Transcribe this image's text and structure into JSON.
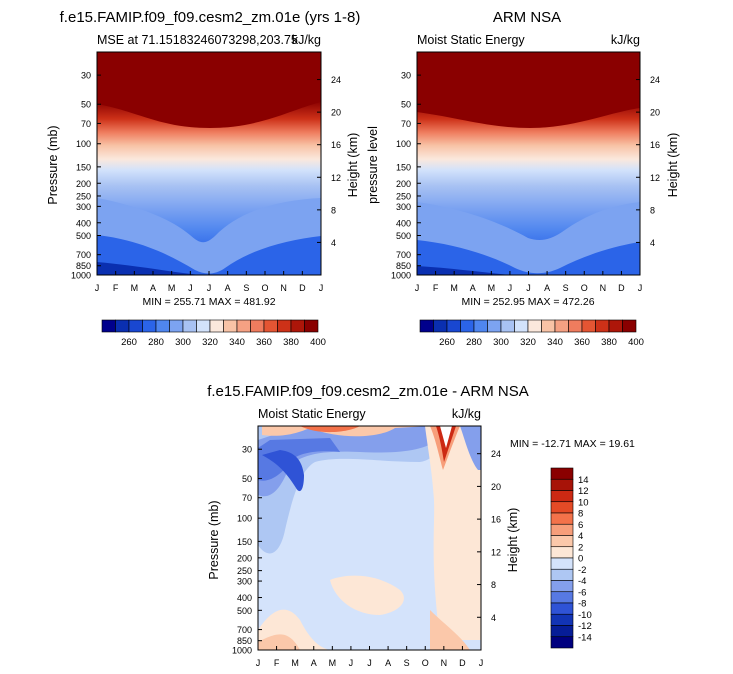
{
  "chart_data": [
    {
      "type": "heatmap",
      "title": "f.e15.FAMIP.f09_f09.cesm2_zm.01e (yrs 1-8)",
      "subtitle_left": "MSE at 71.15183246073298,203.75",
      "subtitle_right": "kJ/kg",
      "ylabel": "Pressure (mb)",
      "ylabel_right": "Height (km)",
      "xlabel": "",
      "x": [
        "J",
        "F",
        "M",
        "A",
        "M",
        "J",
        "J",
        "A",
        "S",
        "O",
        "N",
        "D",
        "J"
      ],
      "y_ticks": [
        30,
        50,
        70,
        100,
        150,
        200,
        250,
        300,
        400,
        500,
        700,
        850,
        1000
      ],
      "height_ticks": [
        24,
        20,
        16,
        12,
        8,
        4
      ],
      "ylim": [
        1000,
        20
      ],
      "stats": "MIN = 255.71 MAX = 481.92",
      "colorbar_labels": [
        260,
        280,
        300,
        320,
        340,
        360,
        380,
        400
      ]
    },
    {
      "type": "heatmap",
      "title": "ARM NSA",
      "subtitle_left": "Moist Static Energy",
      "subtitle_right": "kJ/kg",
      "ylabel": "pressure level",
      "ylabel_right": "Height (km)",
      "xlabel": "",
      "x": [
        "J",
        "F",
        "M",
        "A",
        "M",
        "J",
        "J",
        "A",
        "S",
        "O",
        "N",
        "D",
        "J"
      ],
      "y_ticks": [
        30,
        50,
        70,
        100,
        150,
        200,
        250,
        300,
        400,
        500,
        700,
        850,
        1000
      ],
      "height_ticks": [
        24,
        20,
        16,
        12,
        8,
        4
      ],
      "ylim": [
        1000,
        20
      ],
      "stats": "MIN = 252.95 MAX = 472.26",
      "colorbar_labels": [
        260,
        280,
        300,
        320,
        340,
        360,
        380,
        400
      ]
    },
    {
      "type": "heatmap",
      "title": "f.e15.FAMIP.f09_f09.cesm2_zm.01e - ARM NSA",
      "subtitle_left": "Moist Static Energy",
      "subtitle_right": "kJ/kg",
      "ylabel": "Pressure (mb)",
      "ylabel_right": "Height (km)",
      "xlabel": "",
      "x": [
        "J",
        "F",
        "M",
        "A",
        "M",
        "J",
        "J",
        "A",
        "S",
        "O",
        "N",
        "D",
        "J"
      ],
      "y_ticks": [
        30,
        50,
        70,
        100,
        150,
        200,
        250,
        300,
        400,
        500,
        700,
        850,
        1000
      ],
      "height_ticks": [
        24,
        20,
        16,
        12,
        8,
        4
      ],
      "ylim": [
        1000,
        20
      ],
      "stats": "MIN = -12.71 MAX =  19.61",
      "colorbar_labels": [
        14,
        12,
        10,
        8,
        6,
        4,
        2,
        0,
        -2,
        -4,
        -6,
        -8,
        -10,
        -12,
        -14
      ]
    }
  ],
  "colors": {
    "mse_scale": [
      "#00008c",
      "#0a2fb0",
      "#1947d1",
      "#2b64e8",
      "#4f86ef",
      "#7ca3f1",
      "#a8c2f3",
      "#d2e2fb",
      "#fbe8dc",
      "#f8c3a6",
      "#f5a183",
      "#ef7c5e",
      "#e45533",
      "#cd3118",
      "#ad1609",
      "#8a0000"
    ],
    "diff_scale": [
      "#8a0000",
      "#a71308",
      "#cc2913",
      "#e44a26",
      "#f3724a",
      "#f79e7a",
      "#fbc8aa",
      "#fde7d6",
      "#d4e3fb",
      "#aec7f3",
      "#849fec",
      "#5779e3",
      "#2f53d6",
      "#1234b5",
      "#061d97",
      "#00007f"
    ]
  }
}
